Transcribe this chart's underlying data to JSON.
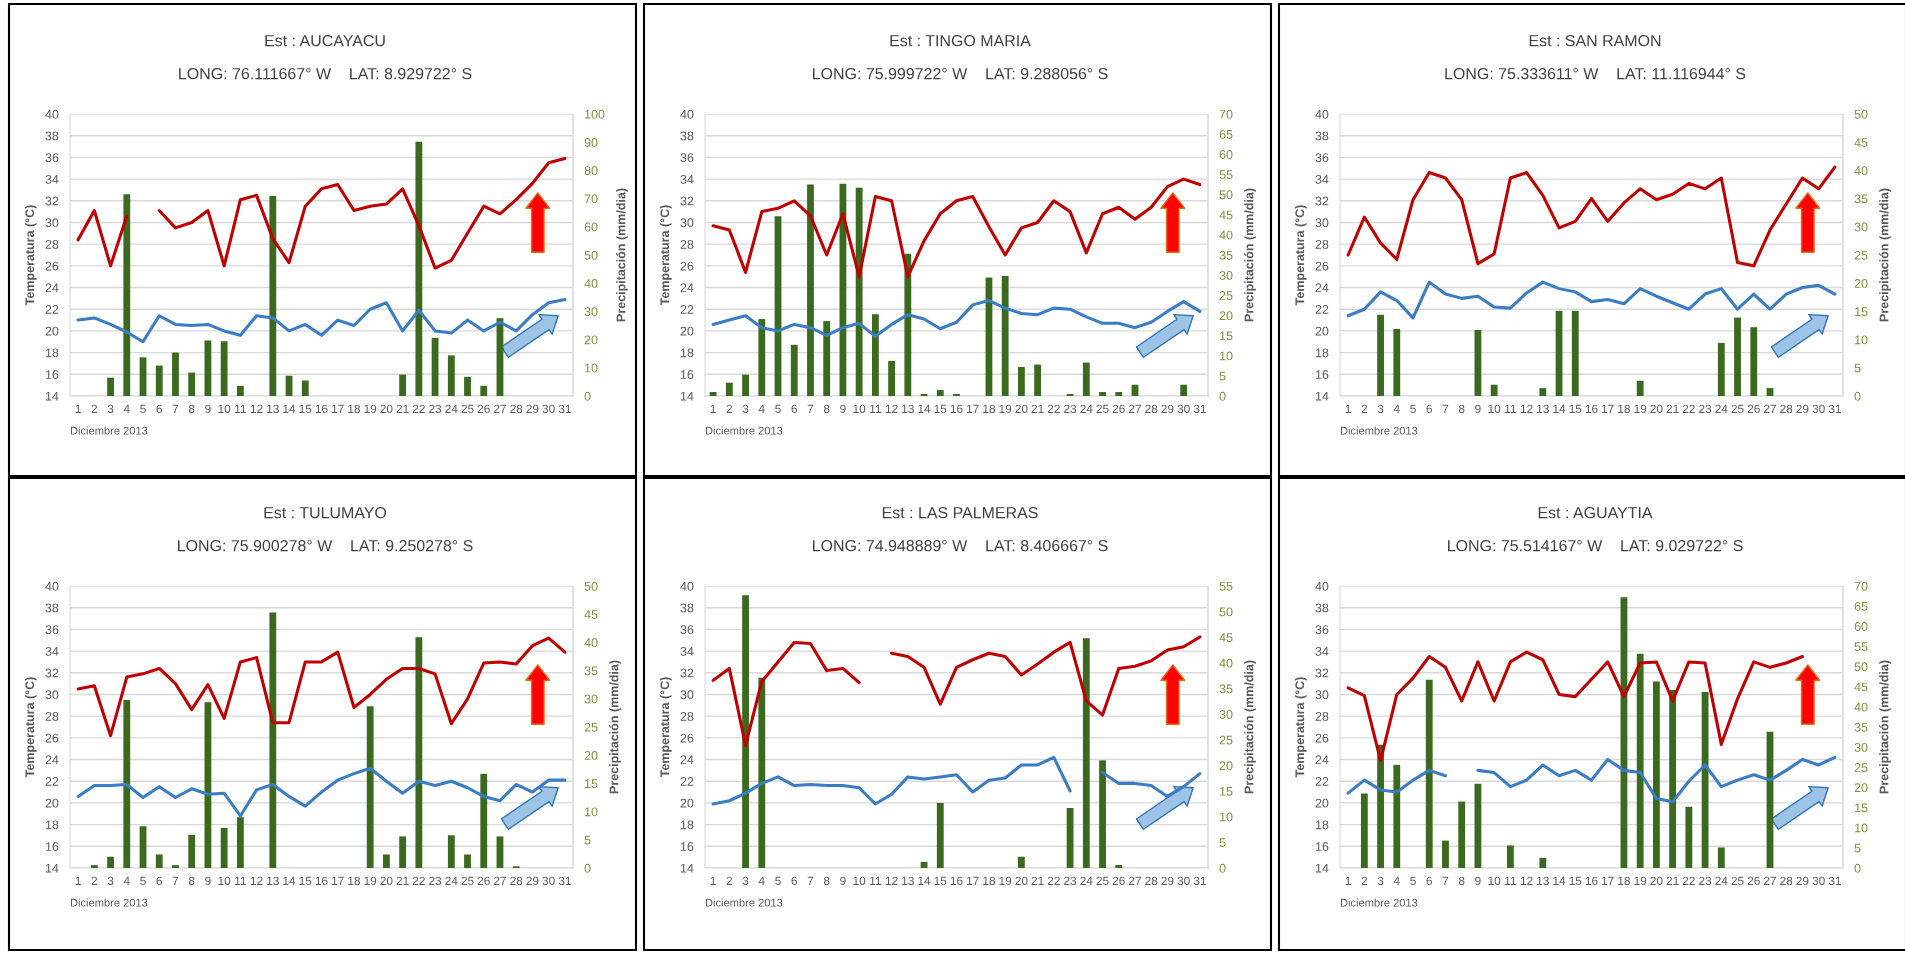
{
  "chart_data": [
    {
      "type": "bar",
      "title": "Est : AUCAYACU",
      "subtitle": "LONG: 76.111667° W    LAT: 8.929722° S",
      "xlabel": "Diciembre 2013",
      "ylabel": "Temperatura (°C)",
      "y2label": "Precipitación (mm/dia)",
      "categories": [
        "1",
        "2",
        "3",
        "4",
        "5",
        "6",
        "7",
        "8",
        "9",
        "10",
        "11",
        "12",
        "13",
        "14",
        "15",
        "16",
        "17",
        "18",
        "19",
        "20",
        "21",
        "22",
        "23",
        "24",
        "25",
        "26",
        "27",
        "28",
        "29",
        "30",
        "31"
      ],
      "ylim": [
        14,
        40
      ],
      "yticks": [
        14,
        16,
        18,
        20,
        22,
        24,
        26,
        28,
        30,
        32,
        34,
        36,
        38,
        40
      ],
      "y2lim": [
        0,
        100
      ],
      "y2ticks": [
        0,
        10,
        20,
        30,
        40,
        50,
        60,
        70,
        80,
        90,
        100
      ],
      "grid": "y",
      "series": [
        {
          "axis": "y2",
          "color": "#3b6a1f",
          "values": [
            null,
            null,
            6.5,
            71.5,
            13.7,
            10.8,
            15.4,
            8.3,
            19.7,
            19.4,
            3.6,
            null,
            70.9,
            7.2,
            5.5,
            null,
            null,
            null,
            null,
            null,
            7.6,
            90.2,
            20.6,
            14.4,
            6.8,
            3.6,
            27.6,
            null,
            null,
            null,
            null
          ]
        },
        {
          "type": "line",
          "color": "#c00000",
          "values": [
            28.4,
            31.1,
            26.0,
            30.6,
            null,
            31.1,
            29.5,
            30.0,
            31.1,
            26.0,
            32.1,
            32.5,
            28.5,
            26.3,
            31.5,
            33.1,
            33.5,
            31.1,
            31.5,
            31.7,
            33.1,
            29.7,
            25.8,
            26.5,
            29.0,
            31.5,
            30.8,
            32.1,
            33.6,
            35.5,
            35.9
          ]
        },
        {
          "type": "line",
          "color": "#3a7dc4",
          "values": [
            21.0,
            21.2,
            20.6,
            19.9,
            19.0,
            21.4,
            20.6,
            20.5,
            20.6,
            20.0,
            19.6,
            21.4,
            21.2,
            20.0,
            20.6,
            19.6,
            21.0,
            20.5,
            22.0,
            22.6,
            20.0,
            21.9,
            20.0,
            19.8,
            21.0,
            20.0,
            20.8,
            20.0,
            21.5,
            22.6,
            22.9
          ]
        }
      ]
    },
    {
      "type": "bar",
      "title": "Est : TINGO MARIA",
      "subtitle": "LONG: 75.999722° W    LAT: 9.288056° S",
      "xlabel": "Diciembre 2013",
      "ylabel": "Temperatura (°C)",
      "y2label": "Precipitación (mm/dia)",
      "categories": [
        "1",
        "2",
        "3",
        "4",
        "5",
        "6",
        "7",
        "8",
        "9",
        "10",
        "11",
        "12",
        "13",
        "14",
        "15",
        "16",
        "17",
        "18",
        "19",
        "20",
        "21",
        "22",
        "23",
        "24",
        "25",
        "26",
        "27",
        "28",
        "29",
        "30",
        "31"
      ],
      "ylim": [
        14,
        40
      ],
      "yticks": [
        14,
        16,
        18,
        20,
        22,
        24,
        26,
        28,
        30,
        32,
        34,
        36,
        38,
        40
      ],
      "y2lim": [
        0,
        70
      ],
      "y2ticks": [
        0,
        5,
        10,
        15,
        20,
        25,
        30,
        35,
        40,
        45,
        50,
        55,
        60,
        65,
        70
      ],
      "grid": "y",
      "series": [
        {
          "axis": "y2",
          "color": "#3b6a1f",
          "values": [
            1.0,
            3.3,
            5.3,
            19.1,
            44.6,
            12.7,
            52.5,
            18.6,
            52.7,
            51.7,
            20.3,
            8.7,
            35.3,
            0.5,
            1.5,
            0.5,
            null,
            29.4,
            29.8,
            7.2,
            7.8,
            null,
            0.5,
            8.3,
            1.0,
            1.0,
            2.8,
            null,
            null,
            2.8,
            null
          ]
        },
        {
          "type": "line",
          "color": "#c00000",
          "values": [
            29.7,
            29.3,
            25.4,
            31.0,
            31.3,
            32.0,
            30.6,
            27.0,
            30.8,
            25.0,
            32.4,
            32.0,
            25.0,
            28.3,
            30.8,
            32.0,
            32.4,
            29.6,
            27.0,
            29.5,
            30.0,
            32.0,
            31.0,
            27.2,
            30.8,
            31.4,
            30.3,
            31.4,
            33.3,
            34.0,
            33.5
          ]
        },
        {
          "type": "line",
          "color": "#3a7dc4",
          "values": [
            20.6,
            21.0,
            21.4,
            20.3,
            20.0,
            20.6,
            20.3,
            19.6,
            20.3,
            20.7,
            19.5,
            20.6,
            21.5,
            21.1,
            20.2,
            20.8,
            22.4,
            22.8,
            22.1,
            21.6,
            21.5,
            22.1,
            22.0,
            21.3,
            20.7,
            20.7,
            20.3,
            20.8,
            21.8,
            22.7,
            21.8
          ]
        }
      ]
    },
    {
      "type": "bar",
      "title": "Est : SAN RAMON",
      "subtitle": "LONG: 75.333611° W    LAT: 11.116944° S",
      "xlabel": "Diciembre 2013",
      "ylabel": "Temperatura (°C)",
      "y2label": "Precipitación (mm/dia)",
      "categories": [
        "1",
        "2",
        "3",
        "4",
        "5",
        "6",
        "7",
        "8",
        "9",
        "10",
        "11",
        "12",
        "13",
        "14",
        "15",
        "16",
        "17",
        "18",
        "19",
        "20",
        "21",
        "22",
        "23",
        "24",
        "25",
        "26",
        "27",
        "28",
        "29",
        "30",
        "31"
      ],
      "ylim": [
        14,
        40
      ],
      "yticks": [
        14,
        16,
        18,
        20,
        22,
        24,
        26,
        28,
        30,
        32,
        34,
        36,
        38,
        40
      ],
      "y2lim": [
        0,
        50
      ],
      "y2ticks": [
        0,
        5,
        10,
        15,
        20,
        25,
        30,
        35,
        40,
        45,
        50
      ],
      "grid": "y",
      "series": [
        {
          "axis": "y2",
          "color": "#3b6a1f",
          "values": [
            null,
            null,
            14.4,
            11.9,
            null,
            null,
            null,
            null,
            11.7,
            2.0,
            null,
            null,
            1.4,
            15.1,
            15.1,
            null,
            null,
            null,
            2.7,
            null,
            null,
            null,
            null,
            9.4,
            13.9,
            12.2,
            1.4,
            null,
            null,
            null,
            null
          ]
        },
        {
          "type": "line",
          "color": "#c00000",
          "values": [
            27.0,
            30.5,
            28.1,
            26.6,
            32.1,
            34.6,
            34.1,
            32.1,
            26.2,
            27.1,
            34.1,
            34.6,
            32.5,
            29.5,
            30.1,
            32.2,
            30.1,
            31.8,
            33.1,
            32.1,
            32.6,
            33.6,
            33.1,
            34.1,
            26.3,
            26.0,
            29.3,
            31.7,
            34.1,
            33.1,
            35.1
          ]
        },
        {
          "type": "line",
          "color": "#3a7dc4",
          "values": [
            21.4,
            22.0,
            23.6,
            22.8,
            21.2,
            24.5,
            23.4,
            23.0,
            23.2,
            22.2,
            22.1,
            23.5,
            24.5,
            23.9,
            23.6,
            22.7,
            22.9,
            22.5,
            23.9,
            23.2,
            22.6,
            22.0,
            23.4,
            23.9,
            22.0,
            23.4,
            22.0,
            23.4,
            24.0,
            24.2,
            23.4
          ]
        }
      ]
    },
    {
      "type": "bar",
      "title": "Est : TULUMAYO",
      "subtitle": "LONG: 75.900278° W    LAT: 9.250278° S",
      "xlabel": "Diciembre 2013",
      "ylabel": "Temperatura (°C)",
      "y2label": "Precipitación (mm/dia)",
      "categories": [
        "1",
        "2",
        "3",
        "4",
        "5",
        "6",
        "7",
        "8",
        "9",
        "10",
        "11",
        "12",
        "13",
        "14",
        "15",
        "16",
        "17",
        "18",
        "19",
        "20",
        "21",
        "22",
        "23",
        "24",
        "25",
        "26",
        "27",
        "28",
        "29",
        "30",
        "31"
      ],
      "ylim": [
        14,
        40
      ],
      "yticks": [
        14,
        16,
        18,
        20,
        22,
        24,
        26,
        28,
        30,
        32,
        34,
        36,
        38,
        40
      ],
      "y2lim": [
        0,
        50
      ],
      "y2ticks": [
        0,
        5,
        10,
        15,
        20,
        25,
        30,
        35,
        40,
        45,
        50
      ],
      "grid": "y",
      "series": [
        {
          "axis": "y2",
          "color": "#3b6a1f",
          "values": [
            null,
            0.5,
            2.0,
            29.8,
            7.4,
            2.4,
            0.5,
            5.9,
            29.4,
            7.1,
            9.0,
            null,
            45.3,
            null,
            null,
            null,
            null,
            null,
            28.7,
            2.4,
            5.6,
            40.9,
            null,
            5.8,
            2.4,
            16.7,
            5.6,
            0.3,
            null,
            null,
            null
          ]
        },
        {
          "type": "line",
          "color": "#c00000",
          "values": [
            30.5,
            30.8,
            26.2,
            31.6,
            31.9,
            32.4,
            31.0,
            28.6,
            30.9,
            27.8,
            33.0,
            33.4,
            27.4,
            27.4,
            33.0,
            33.0,
            33.9,
            28.8,
            30.0,
            31.4,
            32.4,
            32.4,
            31.9,
            27.3,
            29.6,
            32.9,
            33.0,
            32.8,
            34.5,
            35.2,
            33.9
          ]
        },
        {
          "type": "line",
          "color": "#3a7dc4",
          "values": [
            20.6,
            21.6,
            21.6,
            21.7,
            20.5,
            21.5,
            20.5,
            21.3,
            20.8,
            20.9,
            18.8,
            21.2,
            21.7,
            20.6,
            19.7,
            21.0,
            22.1,
            22.7,
            23.2,
            22.0,
            20.9,
            22.0,
            21.6,
            22.0,
            21.4,
            20.6,
            20.2,
            21.7,
            21.0,
            22.1,
            22.1
          ]
        }
      ]
    },
    {
      "type": "bar",
      "title": "Est : LAS PALMERAS",
      "subtitle": "LONG: 74.948889° W    LAT: 8.406667° S",
      "xlabel": "Diciembre 2013",
      "ylabel": "Temperatura (°C)",
      "y2label": "Precipitación (mm/dia)",
      "categories": [
        "1",
        "2",
        "3",
        "4",
        "5",
        "6",
        "7",
        "8",
        "9",
        "10",
        "11",
        "12",
        "13",
        "14",
        "15",
        "16",
        "17",
        "18",
        "19",
        "20",
        "21",
        "22",
        "23",
        "24",
        "25",
        "26",
        "27",
        "28",
        "29",
        "30",
        "31"
      ],
      "ylim": [
        14,
        40
      ],
      "yticks": [
        14,
        16,
        18,
        20,
        22,
        24,
        26,
        28,
        30,
        32,
        34,
        36,
        38,
        40
      ],
      "y2lim": [
        0,
        55
      ],
      "y2ticks": [
        0,
        5,
        10,
        15,
        20,
        25,
        30,
        35,
        40,
        45,
        50,
        55
      ],
      "grid": "y",
      "series": [
        {
          "axis": "y2",
          "color": "#3b6a1f",
          "values": [
            null,
            null,
            53.2,
            37.1,
            null,
            null,
            null,
            null,
            null,
            null,
            null,
            null,
            null,
            1.2,
            12.7,
            null,
            null,
            null,
            null,
            2.2,
            null,
            null,
            11.7,
            44.8,
            21.0,
            0.6,
            null,
            null,
            null,
            null,
            null
          ]
        },
        {
          "type": "line",
          "color": "#c00000",
          "values": [
            31.3,
            32.4,
            25.3,
            31.2,
            33.0,
            34.8,
            34.7,
            32.2,
            32.4,
            31.1,
            null,
            33.8,
            33.5,
            32.5,
            29.1,
            32.5,
            33.2,
            33.8,
            33.5,
            31.8,
            32.8,
            33.9,
            34.8,
            29.4,
            28.1,
            32.4,
            32.6,
            33.1,
            34.1,
            34.4,
            35.3
          ]
        },
        {
          "type": "line",
          "color": "#3a7dc4",
          "values": [
            19.9,
            20.2,
            20.9,
            21.8,
            22.4,
            21.6,
            21.7,
            21.6,
            21.6,
            21.4,
            19.9,
            20.8,
            22.4,
            22.2,
            22.4,
            22.6,
            21.0,
            22.1,
            22.3,
            23.5,
            23.5,
            24.2,
            21.1,
            null,
            22.8,
            21.8,
            21.8,
            21.6,
            20.6,
            21.5,
            22.7
          ]
        }
      ]
    },
    {
      "type": "bar",
      "title": "Est : AGUAYTIA",
      "subtitle": "LONG: 75.514167° W    LAT: 9.029722° S",
      "xlabel": "Diciembre 2013",
      "ylabel": "Temperatura (°C)",
      "y2label": "Precipitación (mm/dia)",
      "categories": [
        "1",
        "2",
        "3",
        "4",
        "5",
        "6",
        "7",
        "8",
        "9",
        "10",
        "11",
        "12",
        "13",
        "14",
        "15",
        "16",
        "17",
        "18",
        "19",
        "20",
        "21",
        "22",
        "23",
        "24",
        "25",
        "26",
        "27",
        "28",
        "29",
        "30",
        "31"
      ],
      "ylim": [
        14,
        40
      ],
      "yticks": [
        14,
        16,
        18,
        20,
        22,
        24,
        26,
        28,
        30,
        32,
        34,
        36,
        38,
        40
      ],
      "y2lim": [
        0,
        70
      ],
      "y2ticks": [
        0,
        5,
        10,
        15,
        20,
        25,
        30,
        35,
        40,
        45,
        50,
        55,
        60,
        65,
        70
      ],
      "grid": "y",
      "series": [
        {
          "axis": "y2",
          "color": "#3b6a1f",
          "values": [
            null,
            18.5,
            30.6,
            25.6,
            null,
            46.7,
            6.8,
            16.5,
            20.9,
            null,
            5.6,
            null,
            2.5,
            null,
            null,
            null,
            null,
            67.2,
            53.2,
            46.3,
            44.2,
            15.2,
            43.7,
            5.1,
            null,
            null,
            33.8,
            null,
            null,
            null,
            null
          ]
        },
        {
          "type": "line",
          "color": "#c00000",
          "values": [
            30.6,
            29.9,
            23.9,
            30.0,
            31.5,
            33.5,
            32.5,
            29.4,
            33.0,
            29.4,
            33.0,
            33.9,
            33.2,
            30.0,
            29.8,
            31.4,
            33.0,
            29.8,
            32.9,
            33.0,
            29.4,
            33.0,
            32.9,
            25.4,
            29.6,
            33.0,
            32.5,
            32.9,
            33.5,
            null,
            null
          ]
        },
        {
          "type": "line",
          "color": "#3a7dc4",
          "values": [
            20.9,
            22.1,
            21.2,
            21.0,
            22.1,
            23.0,
            22.5,
            null,
            23.0,
            22.8,
            21.5,
            22.1,
            23.5,
            22.5,
            23.0,
            22.1,
            24.0,
            23.0,
            22.8,
            20.4,
            20.1,
            22.0,
            23.5,
            21.5,
            22.1,
            22.6,
            22.1,
            23.0,
            24.0,
            23.5,
            24.2
          ]
        }
      ]
    }
  ]
}
